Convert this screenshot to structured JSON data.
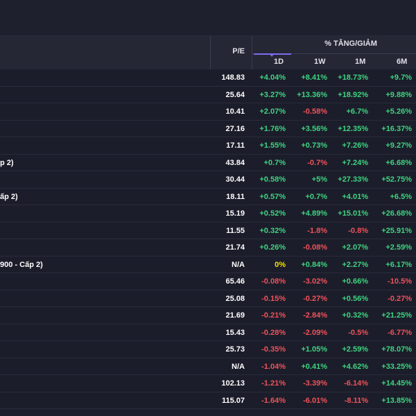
{
  "colors": {
    "positive": "#3ed481",
    "negative": "#f0525a",
    "unchanged": "#f7e200",
    "sort_indicator": "#7d6cf0"
  },
  "header": {
    "pe_label": "P/E",
    "group_label": "% TĂNG/GIẢM",
    "columns": [
      "1D",
      "1W",
      "1M",
      "6M"
    ],
    "sorted_column": "1D"
  },
  "rows": [
    {
      "name": "",
      "pe": "148.83",
      "d1": "+4.04%",
      "w1": "+8.41%",
      "m1": "+18.73%",
      "m6": "+9.7%"
    },
    {
      "name": "",
      "pe": "25.64",
      "d1": "+3.27%",
      "w1": "+13.36%",
      "m1": "+18.92%",
      "m6": "+9.88%"
    },
    {
      "name": "",
      "pe": "10.41",
      "d1": "+2.07%",
      "w1": "-0.58%",
      "m1": "+6.7%",
      "m6": "+5.26%"
    },
    {
      "name": "",
      "pe": "27.16",
      "d1": "+1.76%",
      "w1": "+3.56%",
      "m1": "+12.35%",
      "m6": "+16.37%"
    },
    {
      "name": "",
      "pe": "17.11",
      "d1": "+1.55%",
      "w1": "+0.73%",
      "m1": "+7.26%",
      "m6": "+9.27%"
    },
    {
      "name": "p 2)",
      "pe": "43.84",
      "d1": "+0.7%",
      "w1": "-0.7%",
      "m1": "+7.24%",
      "m6": "+6.68%"
    },
    {
      "name": "",
      "pe": "30.44",
      "d1": "+0.58%",
      "w1": "+5%",
      "m1": "+27.33%",
      "m6": "+52.75%"
    },
    {
      "name": "ấp 2)",
      "pe": "18.11",
      "d1": "+0.57%",
      "w1": "+0.7%",
      "m1": "+4.01%",
      "m6": "+6.5%"
    },
    {
      "name": "",
      "pe": "15.19",
      "d1": "+0.52%",
      "w1": "+4.89%",
      "m1": "+15.01%",
      "m6": "+26.68%"
    },
    {
      "name": "",
      "pe": "11.55",
      "d1": "+0.32%",
      "w1": "-1.8%",
      "m1": "-0.8%",
      "m6": "+25.91%"
    },
    {
      "name": "",
      "pe": "21.74",
      "d1": "+0.26%",
      "w1": "-0.08%",
      "m1": "+2.07%",
      "m6": "+2.59%"
    },
    {
      "name": "900 - Cấp 2)",
      "pe": "N/A",
      "d1": "0%",
      "w1": "+0.84%",
      "m1": "+2.27%",
      "m6": "+6.17%"
    },
    {
      "name": "",
      "pe": "65.46",
      "d1": "-0.08%",
      "w1": "-3.02%",
      "m1": "+0.66%",
      "m6": "-10.5%"
    },
    {
      "name": "",
      "pe": "25.08",
      "d1": "-0.15%",
      "w1": "-0.27%",
      "m1": "+0.56%",
      "m6": "-0.27%"
    },
    {
      "name": "",
      "pe": "21.69",
      "d1": "-0.21%",
      "w1": "-2.84%",
      "m1": "+0.32%",
      "m6": "+21.25%"
    },
    {
      "name": "",
      "pe": "15.43",
      "d1": "-0.28%",
      "w1": "-2.09%",
      "m1": "-0.5%",
      "m6": "-6.77%"
    },
    {
      "name": "",
      "pe": "25.73",
      "d1": "-0.35%",
      "w1": "+1.05%",
      "m1": "+2.59%",
      "m6": "+78.07%"
    },
    {
      "name": "",
      "pe": "N/A",
      "d1": "-1.04%",
      "w1": "+0.41%",
      "m1": "+4.62%",
      "m6": "+33.25%"
    },
    {
      "name": "",
      "pe": "102.13",
      "d1": "-1.21%",
      "w1": "-3.39%",
      "m1": "-6.14%",
      "m6": "+14.45%"
    },
    {
      "name": "",
      "pe": "115.07",
      "d1": "-1.64%",
      "w1": "-6.01%",
      "m1": "-8.11%",
      "m6": "+13.85%"
    }
  ]
}
